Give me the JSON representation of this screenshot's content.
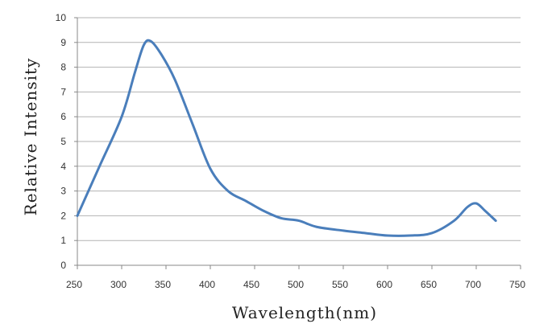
{
  "chart_data": {
    "type": "line",
    "xlabel": "Wavelength(nm)",
    "ylabel": "Relative Intensity",
    "xlim": [
      250,
      750
    ],
    "ylim": [
      0,
      10
    ],
    "x_ticks": [
      "250",
      "300",
      "350",
      "400",
      "450",
      "500",
      "550",
      "600",
      "650",
      "700",
      "750"
    ],
    "y_ticks": [
      "0",
      "1",
      "2",
      "3",
      "4",
      "5",
      "6",
      "7",
      "8",
      "9",
      "10"
    ],
    "grid": "horizontal",
    "series": [
      {
        "color": "#4a7ebb",
        "x": [
          250,
          275,
          300,
          315,
          325,
          333,
          345,
          360,
          380,
          400,
          420,
          440,
          460,
          480,
          500,
          520,
          550,
          575,
          600,
          625,
          650,
          675,
          690,
          700,
          710,
          722
        ],
        "y": [
          2.0,
          4.0,
          6.0,
          7.8,
          8.9,
          9.05,
          8.5,
          7.5,
          5.7,
          3.9,
          3.0,
          2.6,
          2.2,
          1.9,
          1.8,
          1.55,
          1.4,
          1.3,
          1.2,
          1.2,
          1.3,
          1.8,
          2.35,
          2.5,
          2.2,
          1.8
        ]
      }
    ]
  }
}
